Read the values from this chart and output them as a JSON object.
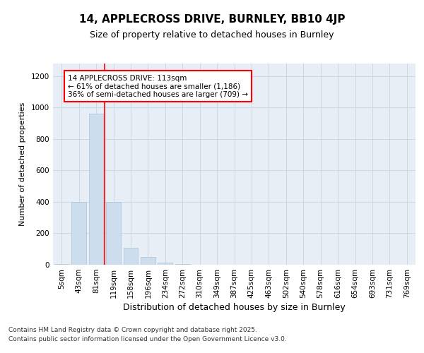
{
  "title1": "14, APPLECROSS DRIVE, BURNLEY, BB10 4JP",
  "title2": "Size of property relative to detached houses in Burnley",
  "xlabel": "Distribution of detached houses by size in Burnley",
  "ylabel": "Number of detached properties",
  "categories": [
    "5sqm",
    "43sqm",
    "81sqm",
    "119sqm",
    "158sqm",
    "196sqm",
    "234sqm",
    "272sqm",
    "310sqm",
    "349sqm",
    "387sqm",
    "425sqm",
    "463sqm",
    "502sqm",
    "540sqm",
    "578sqm",
    "616sqm",
    "654sqm",
    "693sqm",
    "731sqm",
    "769sqm"
  ],
  "values": [
    5,
    400,
    960,
    400,
    110,
    50,
    15,
    5,
    1,
    0,
    0,
    0,
    0,
    0,
    0,
    0,
    0,
    0,
    0,
    0,
    0
  ],
  "bar_color": "#ccdded",
  "bar_edgecolor": "#aac4d8",
  "redline_x": 2.5,
  "annotation_text": "14 APPLECROSS DRIVE: 113sqm\n← 61% of detached houses are smaller (1,186)\n36% of semi-detached houses are larger (709) →",
  "annotation_box_facecolor": "white",
  "annotation_box_edgecolor": "red",
  "redline_color": "red",
  "footnote1": "Contains HM Land Registry data © Crown copyright and database right 2025.",
  "footnote2": "Contains public sector information licensed under the Open Government Licence v3.0.",
  "ylim": [
    0,
    1280
  ],
  "yticks": [
    0,
    200,
    400,
    600,
    800,
    1000,
    1200
  ],
  "background_color": "#ffffff",
  "plot_bg_color": "#e8eef5",
  "grid_color": "#c8d4e0",
  "title1_fontsize": 11,
  "title2_fontsize": 9,
  "xlabel_fontsize": 9,
  "ylabel_fontsize": 8,
  "tick_fontsize": 7.5,
  "annot_fontsize": 7.5,
  "footnote_fontsize": 6.5
}
